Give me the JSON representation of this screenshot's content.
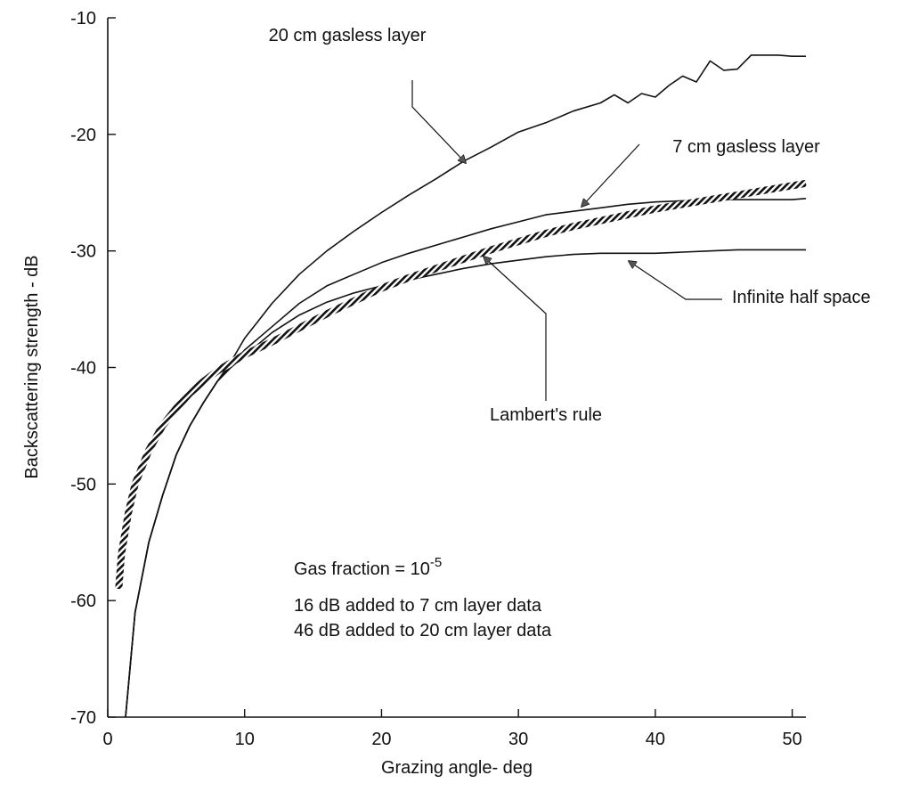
{
  "chart_data": {
    "type": "line",
    "title": "",
    "xlabel": "Grazing angle- deg",
    "ylabel": "Backscattering strength - dB",
    "xlim": [
      0,
      51
    ],
    "ylim": [
      -70,
      -10
    ],
    "xticks": [
      0,
      10,
      20,
      30,
      40,
      50
    ],
    "yticks": [
      -10,
      -20,
      -30,
      -40,
      -50,
      -60,
      -70
    ],
    "grid": false,
    "series": [
      {
        "name": "20 cm gasless layer",
        "style": "solid",
        "x": [
          1.3,
          2,
          3,
          4,
          5,
          6,
          7,
          8,
          9,
          10,
          11,
          12,
          14,
          16,
          18,
          20,
          22,
          24,
          26,
          28,
          30,
          32,
          34,
          36,
          37,
          38,
          39,
          40,
          41,
          42,
          43,
          44,
          45,
          46,
          47,
          48,
          49,
          50,
          51
        ],
        "y": [
          -70,
          -61,
          -55,
          -51,
          -47.5,
          -45,
          -43,
          -41.2,
          -39.5,
          -37.5,
          -36,
          -34.5,
          -32,
          -30,
          -28.3,
          -26.7,
          -25.2,
          -23.8,
          -22.3,
          -21.1,
          -19.8,
          -19,
          -18,
          -17.3,
          -16.6,
          -17.3,
          -16.5,
          -16.8,
          -15.8,
          -15,
          -15.5,
          -13.7,
          -14.5,
          -14.4,
          -13.2,
          -13.2,
          -13.2,
          -13.3,
          -13.3
        ]
      },
      {
        "name": "7 cm gasless layer",
        "style": "solid",
        "x": [
          1.3,
          2,
          3,
          4,
          5,
          6,
          7,
          8,
          9,
          10,
          11,
          12,
          14,
          16,
          18,
          20,
          22,
          24,
          26,
          28,
          30,
          32,
          34,
          36,
          38,
          40,
          42,
          44,
          46,
          48,
          50,
          51
        ],
        "y": [
          -70,
          -61,
          -55,
          -51,
          -47.5,
          -45,
          -43,
          -41.2,
          -39.8,
          -38.5,
          -37.5,
          -36.5,
          -34.5,
          -33,
          -32,
          -31,
          -30.2,
          -29.5,
          -28.8,
          -28.1,
          -27.5,
          -26.9,
          -26.6,
          -26.3,
          -26,
          -25.8,
          -25.7,
          -25.6,
          -25.6,
          -25.6,
          -25.6,
          -25.5
        ]
      },
      {
        "name": "Infinite half space",
        "style": "solid",
        "x": [
          1.3,
          2,
          3,
          4,
          5,
          6,
          7,
          8,
          9,
          10,
          12,
          14,
          16,
          18,
          20,
          22,
          24,
          26,
          28,
          30,
          32,
          34,
          36,
          38,
          40,
          42,
          44,
          46,
          48,
          50,
          51
        ],
        "y": [
          -70,
          -61,
          -55,
          -51,
          -47.5,
          -45,
          -43,
          -41.2,
          -40,
          -39,
          -37,
          -35.5,
          -34.4,
          -33.6,
          -33,
          -32.5,
          -32,
          -31.5,
          -31.1,
          -30.8,
          -30.5,
          -30.3,
          -30.2,
          -30.2,
          -30.2,
          -30.1,
          -30,
          -29.9,
          -29.9,
          -29.9,
          -29.9
        ]
      },
      {
        "name": "Lambert's rule",
        "style": "hatched",
        "x": [
          0.8,
          1,
          1.5,
          2,
          3,
          4,
          5,
          6,
          7,
          8,
          10,
          12,
          14,
          16,
          18,
          20,
          22,
          24,
          26,
          28,
          30,
          32,
          34,
          36,
          38,
          40,
          42,
          44,
          46,
          48,
          50,
          51
        ],
        "y": [
          -59,
          -56,
          -52.5,
          -50,
          -47.1,
          -45,
          -43.5,
          -42.2,
          -41.2,
          -40.3,
          -38.9,
          -37.8,
          -36.6,
          -35.4,
          -34.3,
          -33.2,
          -32.3,
          -31.5,
          -30.7,
          -29.9,
          -29.2,
          -28.5,
          -27.9,
          -27.4,
          -26.9,
          -26.4,
          -26,
          -25.6,
          -25.2,
          -24.8,
          -24.4,
          -24.2
        ]
      }
    ],
    "annotations": {
      "label_20cm": "20 cm gasless layer",
      "label_7cm": "7 cm gasless layer",
      "label_infinite": "Infinite half space",
      "label_lambert": "Lambert's rule",
      "note_gas_prefix": "Gas fraction = 10",
      "note_gas_exponent": "-5",
      "note_7cm": "16 dB added to 7 cm layer data",
      "note_20cm": "46 dB added to 20 cm layer data"
    }
  }
}
